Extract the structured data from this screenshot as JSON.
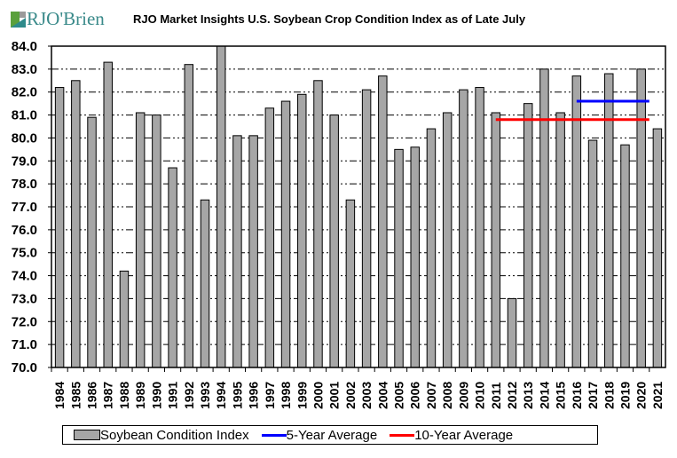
{
  "logo": {
    "text": "RJO'Brien",
    "colors": {
      "green": "#5aa03c",
      "teal": "#2e8b8b",
      "gray": "#9a9a9a"
    }
  },
  "chart_data": {
    "type": "bar",
    "title": "RJO Market Insights U.S. Soybean Crop Condition Index as of Late July",
    "xlabel": "",
    "ylabel": "",
    "ylim": [
      70.0,
      84.0
    ],
    "yticks": [
      "70.0",
      "71.0",
      "72.0",
      "73.0",
      "74.0",
      "75.0",
      "76.0",
      "77.0",
      "78.0",
      "79.0",
      "80.0",
      "81.0",
      "82.0",
      "83.0",
      "84.0"
    ],
    "grid": true,
    "legend_position": "bottom",
    "categories": [
      "1984",
      "1985",
      "1986",
      "1987",
      "1988",
      "1989",
      "1990",
      "1991",
      "1992",
      "1993",
      "1994",
      "1995",
      "1996",
      "1997",
      "1998",
      "1999",
      "2000",
      "2001",
      "2002",
      "2003",
      "2004",
      "2005",
      "2006",
      "2007",
      "2008",
      "2009",
      "2010",
      "2011",
      "2012",
      "2013",
      "2014",
      "2015",
      "2016",
      "2017",
      "2018",
      "2019",
      "2020",
      "2021"
    ],
    "series": [
      {
        "name": "Soybean Condition Index",
        "type": "bar",
        "color": "#a6a6a6",
        "values": [
          82.2,
          82.5,
          80.9,
          83.3,
          74.2,
          81.1,
          81.0,
          78.7,
          83.2,
          77.3,
          84.0,
          80.1,
          80.1,
          81.3,
          81.6,
          81.9,
          82.5,
          81.0,
          77.3,
          82.1,
          82.7,
          79.5,
          79.6,
          80.4,
          81.1,
          82.1,
          82.2,
          81.1,
          73.0,
          81.5,
          83.0,
          81.1,
          82.7,
          79.9,
          82.8,
          79.7,
          83.0,
          80.4
        ]
      },
      {
        "name": "5-Year Average",
        "type": "line",
        "color": "#0000ff",
        "value": 81.6,
        "from": "2016",
        "to": "2020"
      },
      {
        "name": "10-Year Average",
        "type": "line",
        "color": "#ff0000",
        "value": 80.8,
        "from": "2011",
        "to": "2020"
      }
    ]
  }
}
